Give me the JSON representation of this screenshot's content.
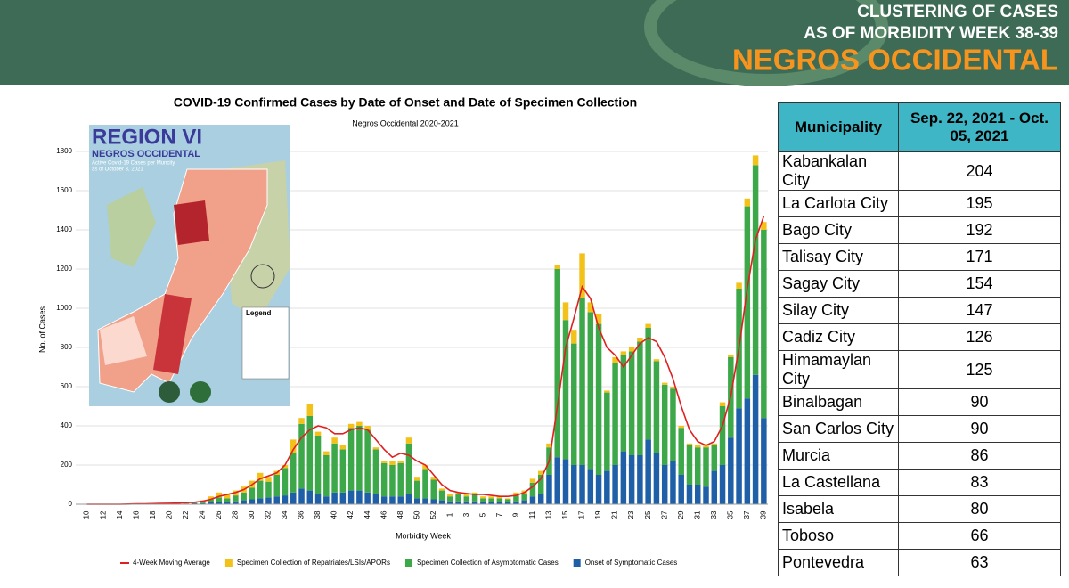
{
  "header": {
    "line1": "CLUSTERING OF CASES",
    "line2": "AS OF MORBIDITY WEEK 38-39",
    "province": "NEGROS OCCIDENTAL"
  },
  "map": {
    "title": "REGION VI",
    "subtitle": "NEGROS OCCIDENTAL",
    "caption": "Active Covid-19 Cases per Muncity",
    "date": "as of  October 3, 2021",
    "legend_title": "Legend"
  },
  "chart_data": {
    "type": "bar",
    "stacked": true,
    "title": "COVID-19 Confirmed Cases by Date of Onset and Date of Specimen Collection",
    "subtitle": "Negros Occidental 2020-2021",
    "y_label": "No. of Cases",
    "x_label": "Morbidity Week",
    "ylim": [
      0,
      1800
    ],
    "yticks": [
      0,
      200,
      400,
      600,
      800,
      1000,
      1200,
      1400,
      1600,
      1800
    ],
    "grid": true,
    "categories": [
      "10",
      null,
      "12",
      null,
      "14",
      null,
      "16",
      null,
      "18",
      null,
      "20",
      null,
      "22",
      null,
      "24",
      null,
      "26",
      null,
      "28",
      null,
      "30",
      null,
      "32",
      null,
      "34",
      null,
      "36",
      null,
      "38",
      null,
      "40",
      null,
      "42",
      null,
      "44",
      null,
      "46",
      null,
      "48",
      null,
      "50",
      null,
      "52",
      null,
      "1",
      null,
      "3",
      null,
      "5",
      null,
      "7",
      null,
      "9",
      null,
      "11",
      null,
      "13",
      null,
      "15",
      null,
      "17",
      null,
      "19",
      null,
      "21",
      null,
      "23",
      null,
      "25",
      null,
      "27",
      null,
      "29",
      null,
      "31",
      null,
      "33",
      null,
      "35",
      null,
      "37",
      null,
      "39"
    ],
    "series": [
      {
        "name": "Onset of Symptomatic Cases",
        "color": "#1f5fa8",
        "values": [
          0,
          0,
          0,
          0,
          0,
          0,
          1,
          1,
          1,
          2,
          2,
          2,
          3,
          5,
          5,
          10,
          10,
          10,
          15,
          20,
          25,
          30,
          35,
          40,
          45,
          60,
          80,
          70,
          50,
          40,
          60,
          60,
          70,
          70,
          60,
          50,
          40,
          40,
          40,
          50,
          30,
          30,
          25,
          20,
          15,
          15,
          15,
          15,
          10,
          10,
          10,
          10,
          15,
          20,
          40,
          50,
          150,
          240,
          230,
          200,
          200,
          180,
          150,
          170,
          200,
          270,
          250,
          250,
          330,
          260,
          200,
          220,
          150,
          100,
          100,
          90,
          170,
          200,
          340,
          490,
          540,
          660,
          440
        ]
      },
      {
        "name": "Specimen Collection of Asymptomatic Cases",
        "color": "#3da84a",
        "values": [
          0,
          0,
          0,
          0,
          0,
          0,
          0,
          0,
          0,
          1,
          1,
          2,
          2,
          3,
          5,
          15,
          25,
          20,
          30,
          40,
          60,
          90,
          80,
          110,
          140,
          200,
          330,
          380,
          300,
          210,
          250,
          220,
          320,
          330,
          320,
          230,
          170,
          160,
          170,
          260,
          90,
          150,
          100,
          50,
          25,
          35,
          25,
          35,
          20,
          20,
          20,
          15,
          30,
          30,
          70,
          100,
          140,
          960,
          710,
          620,
          850,
          800,
          770,
          400,
          520,
          490,
          530,
          580,
          570,
          470,
          410,
          370,
          240,
          200,
          190,
          200,
          130,
          300,
          410,
          610,
          980,
          1070,
          960
        ]
      },
      {
        "name": "Specimen Collection of Repatriates/LSIs/APORs",
        "color": "#f2c21b",
        "values": [
          0,
          0,
          0,
          0,
          0,
          1,
          1,
          1,
          2,
          2,
          2,
          3,
          4,
          5,
          10,
          15,
          25,
          20,
          25,
          30,
          35,
          40,
          25,
          20,
          15,
          70,
          30,
          60,
          20,
          20,
          30,
          20,
          20,
          20,
          20,
          10,
          10,
          20,
          10,
          30,
          20,
          20,
          15,
          10,
          10,
          10,
          10,
          10,
          10,
          10,
          10,
          5,
          15,
          20,
          20,
          20,
          20,
          20,
          90,
          70,
          230,
          50,
          50,
          10,
          30,
          20,
          20,
          20,
          20,
          10,
          10,
          10,
          10,
          10,
          10,
          10,
          10,
          20,
          10,
          30,
          40,
          50,
          40
        ]
      },
      {
        "name": "4-Week Moving Average",
        "type": "line",
        "color": "#e02020",
        "values": [
          0,
          0,
          0,
          0,
          0,
          1,
          2,
          2,
          3,
          4,
          5,
          6,
          8,
          10,
          15,
          25,
          40,
          50,
          60,
          75,
          100,
          130,
          145,
          160,
          200,
          280,
          340,
          380,
          400,
          390,
          360,
          360,
          380,
          390,
          380,
          330,
          280,
          240,
          260,
          250,
          220,
          200,
          150,
          100,
          70,
          60,
          55,
          50,
          50,
          45,
          40,
          40,
          45,
          60,
          90,
          130,
          220,
          500,
          800,
          950,
          1110,
          1050,
          900,
          800,
          760,
          700,
          760,
          820,
          850,
          830,
          750,
          640,
          500,
          380,
          320,
          300,
          320,
          400,
          550,
          800,
          1100,
          1350,
          1470
        ]
      }
    ]
  },
  "table": {
    "columns": [
      "Municipality",
      "Sep. 22, 2021 - Oct. 05, 2021"
    ],
    "rows": [
      [
        "Kabankalan City",
        204
      ],
      [
        "La Carlota City",
        195
      ],
      [
        "Bago City",
        192
      ],
      [
        "Talisay City",
        171
      ],
      [
        "Sagay City",
        154
      ],
      [
        "Silay City",
        147
      ],
      [
        "Cadiz City",
        126
      ],
      [
        "Himamaylan City",
        125
      ],
      [
        "Binalbagan",
        90
      ],
      [
        "San Carlos City",
        90
      ],
      [
        "Murcia",
        86
      ],
      [
        "La Castellana",
        83
      ],
      [
        "Isabela",
        80
      ],
      [
        "Toboso",
        66
      ],
      [
        "Pontevedra",
        63
      ]
    ]
  }
}
